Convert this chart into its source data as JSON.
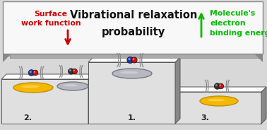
{
  "title_line1": "Vibrational relaxation",
  "title_line2": "probability",
  "left_label_line1": "Surface",
  "left_label_line2": "work function",
  "right_label_line1": "Molecule's",
  "right_label_line2": "electron",
  "right_label_line3": "binding energy",
  "banner_bg": "#f8f8f8",
  "banner_border": "#aaaaaa",
  "podium_face_color": "#e0e0e0",
  "podium_side_color": "#888888",
  "podium_edge_color": "#555555",
  "bg_color": "#d8d8d8",
  "title_color": "#111111",
  "left_arrow_color": "#cc0000",
  "right_arrow_color": "#00bb00",
  "left_text_color": "#cc0000",
  "right_text_color": "#00bb00",
  "gold_color": "#f5b800",
  "silver_color": "#b8b8c0",
  "figsize": [
    3.78,
    1.84
  ],
  "dpi": 100
}
